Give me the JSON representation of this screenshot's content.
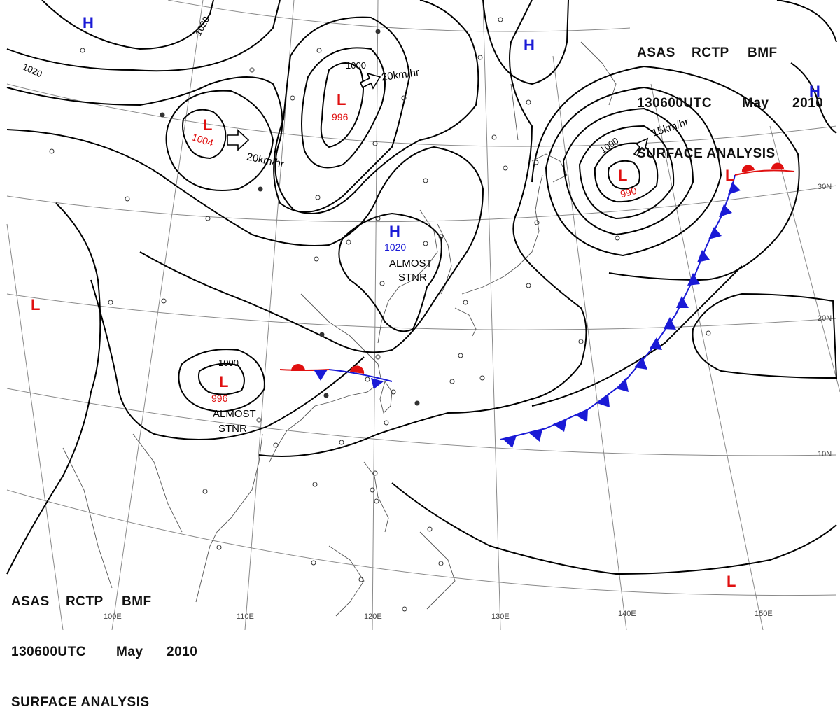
{
  "header_top_right": {
    "line1": [
      "ASAS",
      "RCTP",
      "BMF"
    ],
    "line2": [
      "130600UTC",
      "May",
      "2010"
    ],
    "line3": "SURFACE ANALYSIS"
  },
  "header_bottom_left": {
    "line1": [
      "ASAS",
      "RCTP",
      "BMF"
    ],
    "line2": [
      "130600UTC",
      "May",
      "2010"
    ],
    "line3": "SURFACE ANALYSIS"
  },
  "colors": {
    "high": "#1a1ad6",
    "low": "#e01010",
    "cold_front": "#1a1ad6",
    "warm_front": "#e01010",
    "isobar": "#000000",
    "grid": "#888888"
  },
  "longitude_labels": [
    "100E",
    "110E",
    "120E",
    "130E",
    "140E",
    "150E"
  ],
  "latitude_labels": [
    "30N",
    "20N",
    "10N"
  ],
  "pressure_centers": {
    "high_nw": {
      "symbol": "H"
    },
    "high_ne1": {
      "symbol": "H"
    },
    "high_ne2": {
      "symbol": "H"
    },
    "high_china": {
      "symbol": "H",
      "value": "1020"
    },
    "low_mongolia": {
      "symbol": "L",
      "value": "1004"
    },
    "low_manchuria": {
      "symbol": "L",
      "value": "996"
    },
    "low_pacific": {
      "symbol": "L",
      "value": "990"
    },
    "low_indochina": {
      "symbol": "L",
      "value": "996"
    },
    "low_west": {
      "symbol": "L"
    },
    "low_southeast": {
      "symbol": "L"
    },
    "low_front": {
      "symbol": "L"
    }
  },
  "isobar_labels": {
    "iso_1020_nw": "1020",
    "iso_1020_w": "1020",
    "iso_1000_n": "1000",
    "iso_1000_pac": "1000",
    "iso_1000_sw": "1000"
  },
  "movement_labels": {
    "mongolia": "20km/hr",
    "manchuria": "20km/hr",
    "pacific": "15km/hr"
  },
  "stationary_notes": {
    "china": [
      "ALMOST",
      "STNR"
    ],
    "indochina": [
      "ALMOST",
      "STNR"
    ]
  }
}
